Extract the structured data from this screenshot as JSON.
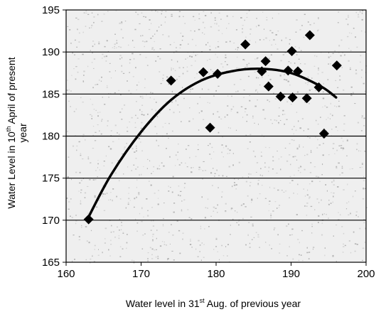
{
  "chart_data": {
    "type": "scatter",
    "title": "",
    "xlabel": {
      "prefix": "Water level in 31",
      "sup": "st",
      "suffix": " Aug. of previous year"
    },
    "ylabel": {
      "prefix": "Water Level in 10",
      "sup": "th",
      "suffix": " April of present",
      "line2": "year"
    },
    "xlim": [
      160,
      200
    ],
    "ylim": [
      165,
      195
    ],
    "xticks": [
      160,
      170,
      180,
      190,
      200
    ],
    "yticks": [
      165,
      170,
      175,
      180,
      185,
      190,
      195
    ],
    "grid": "horizontal",
    "points": [
      {
        "x": 163,
        "y": 170.1
      },
      {
        "x": 174,
        "y": 186.6
      },
      {
        "x": 178.3,
        "y": 187.6
      },
      {
        "x": 179.2,
        "y": 181.0
      },
      {
        "x": 180.2,
        "y": 187.4
      },
      {
        "x": 183.9,
        "y": 190.9
      },
      {
        "x": 186.1,
        "y": 187.7
      },
      {
        "x": 186.6,
        "y": 188.9
      },
      {
        "x": 187.0,
        "y": 185.9
      },
      {
        "x": 188.6,
        "y": 184.7
      },
      {
        "x": 189.6,
        "y": 187.8
      },
      {
        "x": 190.1,
        "y": 190.1
      },
      {
        "x": 190.2,
        "y": 184.6
      },
      {
        "x": 190.9,
        "y": 187.7
      },
      {
        "x": 192.1,
        "y": 184.5
      },
      {
        "x": 192.5,
        "y": 192.0
      },
      {
        "x": 193.7,
        "y": 185.8
      },
      {
        "x": 194.4,
        "y": 180.3
      },
      {
        "x": 196.1,
        "y": 188.4
      }
    ],
    "trend": {
      "type": "quadratic",
      "points": [
        {
          "x": 163,
          "y": 170.4
        },
        {
          "x": 166,
          "y": 175.4
        },
        {
          "x": 170,
          "y": 180.5
        },
        {
          "x": 174,
          "y": 184.3
        },
        {
          "x": 178,
          "y": 186.6
        },
        {
          "x": 182,
          "y": 187.7
        },
        {
          "x": 186,
          "y": 188.0
        },
        {
          "x": 190,
          "y": 187.5
        },
        {
          "x": 194,
          "y": 185.9
        },
        {
          "x": 196,
          "y": 184.6
        }
      ]
    },
    "colors": {
      "marker": "#000000",
      "line": "#000000",
      "grid": "#000000"
    }
  }
}
